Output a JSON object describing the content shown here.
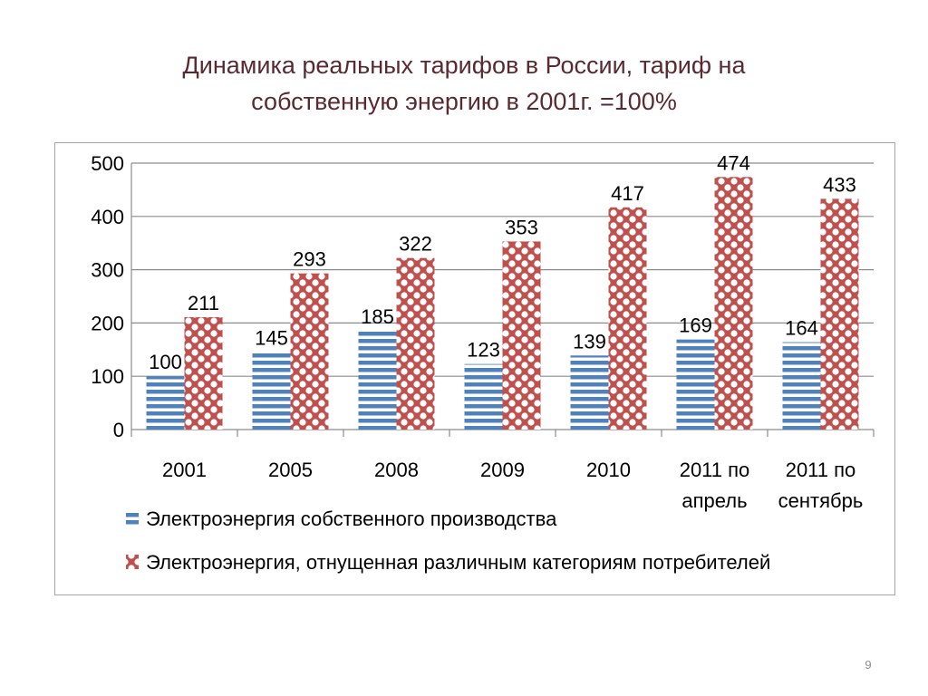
{
  "slide": {
    "title_line1": "Динамика реальных тарифов в России, тариф на",
    "title_line2": "собственную энергию в 2001г. =100%",
    "page_number": "9"
  },
  "chart_data": {
    "type": "bar",
    "categories": [
      [
        "2001"
      ],
      [
        "2005"
      ],
      [
        "2008"
      ],
      [
        "2009"
      ],
      [
        "2010"
      ],
      [
        "2011 по",
        "апрель"
      ],
      [
        "2011 по",
        "сентябрь"
      ]
    ],
    "series": [
      {
        "name": "Электроэнергия собственного производства",
        "values": [
          100,
          145,
          185,
          123,
          139,
          169,
          164
        ],
        "color": "#4f81bd",
        "pattern": "horizontal-stripes"
      },
      {
        "name": "Электроэнергия, отнущенная различным категориям потребителей",
        "values": [
          211,
          293,
          322,
          353,
          417,
          474,
          433
        ],
        "color": "#c0504d",
        "pattern": "dotted"
      }
    ],
    "ylim": [
      0,
      500
    ],
    "yticks": [
      0,
      100,
      200,
      300,
      400,
      500
    ],
    "grid": true,
    "legend_position": "bottom",
    "data_labels": true
  }
}
